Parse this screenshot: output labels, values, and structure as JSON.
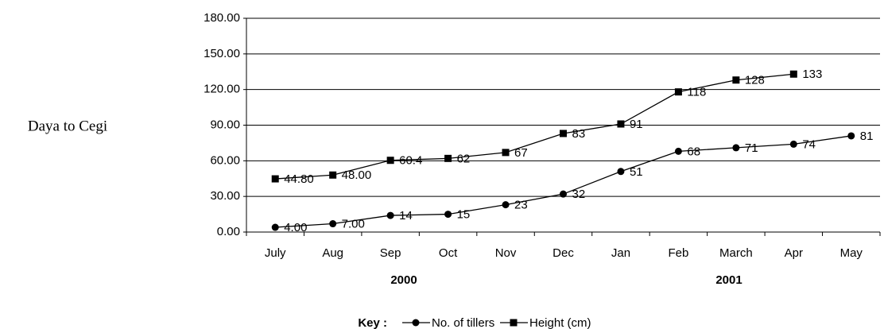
{
  "chart_data": {
    "type": "line",
    "side_label": "Daya to Cegi",
    "categories": [
      "July",
      "Aug",
      "Sep",
      "Oct",
      "Nov",
      "Dec",
      "Jan",
      "Feb",
      "March",
      "Apr",
      "May"
    ],
    "year_labels": [
      "2000",
      "2001"
    ],
    "legend_title": "Key :",
    "series": [
      {
        "name": "No. of tillers",
        "color": "#000000",
        "marker": "circle",
        "values": [
          4,
          7,
          14,
          15,
          23,
          32,
          51,
          68,
          71,
          74,
          81
        ],
        "value_labels": [
          "4.00",
          "7.00",
          "14",
          "15",
          "23",
          "32",
          "51",
          "68",
          "71",
          "74",
          "81"
        ]
      },
      {
        "name": "Height (cm)",
        "color": "#000000",
        "marker": "square",
        "values": [
          44.8,
          48,
          60.4,
          62,
          67,
          83,
          91,
          118,
          128,
          133,
          null
        ],
        "value_labels": [
          "44.80",
          "48.00",
          "60.4",
          "62",
          "67",
          "83",
          "91",
          "118",
          "128",
          "133",
          null
        ]
      }
    ],
    "ylim": [
      0,
      180
    ],
    "yticks": [
      {
        "value": 0,
        "label": "0.00"
      },
      {
        "value": 30,
        "label": "30.00"
      },
      {
        "value": 60,
        "label": "60.00"
      },
      {
        "value": 90,
        "label": "90.00"
      },
      {
        "value": 120,
        "label": "120.00"
      },
      {
        "value": 150,
        "label": "150.00"
      },
      {
        "value": 180,
        "label": "180.00"
      }
    ],
    "grid": true
  }
}
